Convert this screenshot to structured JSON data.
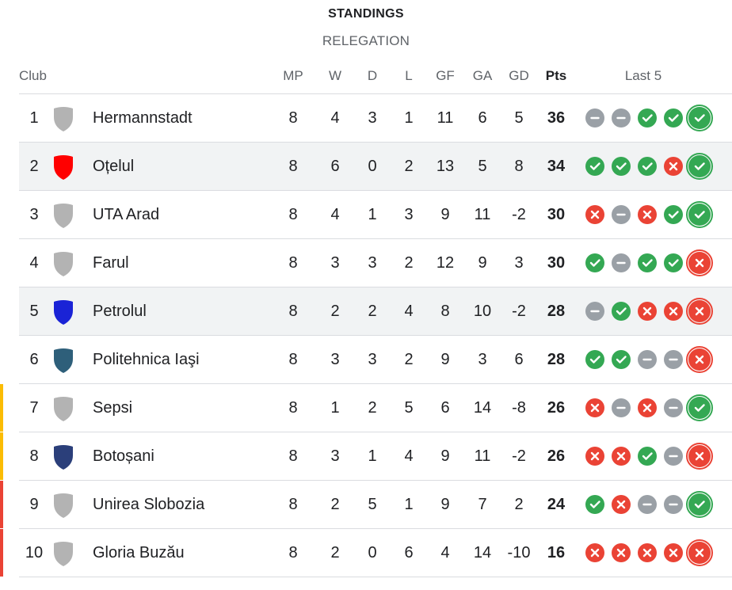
{
  "title": "STANDINGS",
  "subtitle": "RELEGATION",
  "headers": {
    "club": "Club",
    "mp": "MP",
    "w": "W",
    "d": "D",
    "l": "L",
    "gf": "GF",
    "ga": "GA",
    "gd": "GD",
    "pts": "Pts",
    "last5": "Last 5"
  },
  "colors": {
    "win": "#34a853",
    "loss": "#ea4335",
    "draw": "#9aa0a6",
    "zone_playoff": "#fbbc04",
    "zone_relegation": "#ea4335"
  },
  "rows": [
    {
      "pos": "1",
      "club": "Hermannstadt",
      "logo_color": "#b3b3b3",
      "mp": "8",
      "w": "4",
      "d": "3",
      "l": "1",
      "gf": "11",
      "ga": "6",
      "gd": "5",
      "pts": "36",
      "last5": [
        "D",
        "D",
        "W",
        "W",
        "W"
      ],
      "zone": ""
    },
    {
      "pos": "2",
      "club": "Oțelul",
      "logo_color": "#ff0000",
      "mp": "8",
      "w": "6",
      "d": "0",
      "l": "2",
      "gf": "13",
      "ga": "5",
      "gd": "8",
      "pts": "34",
      "last5": [
        "W",
        "W",
        "W",
        "L",
        "W"
      ],
      "zone": ""
    },
    {
      "pos": "3",
      "club": "UTA Arad",
      "logo_color": "#b3b3b3",
      "mp": "8",
      "w": "4",
      "d": "1",
      "l": "3",
      "gf": "9",
      "ga": "11",
      "gd": "-2",
      "pts": "30",
      "last5": [
        "L",
        "D",
        "L",
        "W",
        "W"
      ],
      "zone": ""
    },
    {
      "pos": "4",
      "club": "Farul",
      "logo_color": "#b3b3b3",
      "mp": "8",
      "w": "3",
      "d": "3",
      "l": "2",
      "gf": "12",
      "ga": "9",
      "gd": "3",
      "pts": "30",
      "last5": [
        "W",
        "D",
        "W",
        "W",
        "L"
      ],
      "zone": ""
    },
    {
      "pos": "5",
      "club": "Petrolul",
      "logo_color": "#1a23d6",
      "mp": "8",
      "w": "2",
      "d": "2",
      "l": "4",
      "gf": "8",
      "ga": "10",
      "gd": "-2",
      "pts": "28",
      "last5": [
        "D",
        "W",
        "L",
        "L",
        "L"
      ],
      "zone": ""
    },
    {
      "pos": "6",
      "club": "Politehnica Iaşi",
      "logo_color": "#2e5f7a",
      "mp": "8",
      "w": "3",
      "d": "3",
      "l": "2",
      "gf": "9",
      "ga": "3",
      "gd": "6",
      "pts": "28",
      "last5": [
        "W",
        "W",
        "D",
        "D",
        "L"
      ],
      "zone": ""
    },
    {
      "pos": "7",
      "club": "Sepsi",
      "logo_color": "#b3b3b3",
      "mp": "8",
      "w": "1",
      "d": "2",
      "l": "5",
      "gf": "6",
      "ga": "14",
      "gd": "-8",
      "pts": "26",
      "last5": [
        "L",
        "D",
        "L",
        "D",
        "W"
      ],
      "zone": "playoff"
    },
    {
      "pos": "8",
      "club": "Botoșani",
      "logo_color": "#2b3f7a",
      "mp": "8",
      "w": "3",
      "d": "1",
      "l": "4",
      "gf": "9",
      "ga": "11",
      "gd": "-2",
      "pts": "26",
      "last5": [
        "L",
        "L",
        "W",
        "D",
        "L"
      ],
      "zone": "playoff"
    },
    {
      "pos": "9",
      "club": "Unirea Slobozia",
      "logo_color": "#b3b3b3",
      "mp": "8",
      "w": "2",
      "d": "5",
      "l": "1",
      "gf": "9",
      "ga": "7",
      "gd": "2",
      "pts": "24",
      "last5": [
        "W",
        "L",
        "D",
        "D",
        "W"
      ],
      "zone": "relegation"
    },
    {
      "pos": "10",
      "club": "Gloria Buzău",
      "logo_color": "#b3b3b3",
      "mp": "8",
      "w": "2",
      "d": "0",
      "l": "6",
      "gf": "4",
      "ga": "14",
      "gd": "-10",
      "pts": "16",
      "last5": [
        "L",
        "L",
        "L",
        "L",
        "L"
      ],
      "zone": "relegation"
    }
  ]
}
